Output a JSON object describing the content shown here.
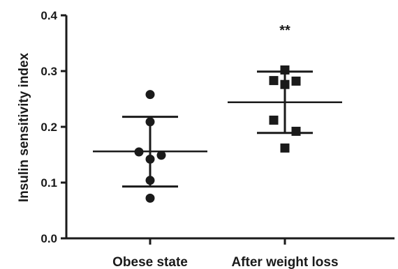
{
  "chart_data": {
    "type": "scatter",
    "ylabel": "Insulin sensitivity index",
    "xlabel": "",
    "ylim": [
      0.0,
      0.4
    ],
    "yticks": [
      "0.0",
      "0.1",
      "0.2",
      "0.3",
      "0.4"
    ],
    "grid": false,
    "categories": [
      "Obese state",
      "After weight loss"
    ],
    "colors": {
      "ink": "#1a1a1a"
    },
    "groups": [
      {
        "category": "Obese state",
        "marker": "circle",
        "points": [
          {
            "dx": 0,
            "y": 0.258
          },
          {
            "dx": 0,
            "y": 0.209
          },
          {
            "dx": -1,
            "y": 0.155
          },
          {
            "dx": 1,
            "y": 0.149
          },
          {
            "dx": 0,
            "y": 0.142
          },
          {
            "dx": 0,
            "y": 0.104
          },
          {
            "dx": 0,
            "y": 0.072
          }
        ],
        "mean": 0.156,
        "sd_upper": 0.218,
        "sd_lower": 0.093
      },
      {
        "category": "After weight loss",
        "marker": "square",
        "points": [
          {
            "dx": 0,
            "y": 0.302
          },
          {
            "dx": -1,
            "y": 0.283
          },
          {
            "dx": 1,
            "y": 0.282
          },
          {
            "dx": 0,
            "y": 0.276
          },
          {
            "dx": -1,
            "y": 0.212
          },
          {
            "dx": 1,
            "y": 0.192
          },
          {
            "dx": 0,
            "y": 0.162
          }
        ],
        "mean": 0.244,
        "sd_upper": 0.299,
        "sd_lower": 0.189
      }
    ],
    "annotations": [
      {
        "category": "After weight loss",
        "text": "**",
        "y": 0.38
      }
    ]
  }
}
